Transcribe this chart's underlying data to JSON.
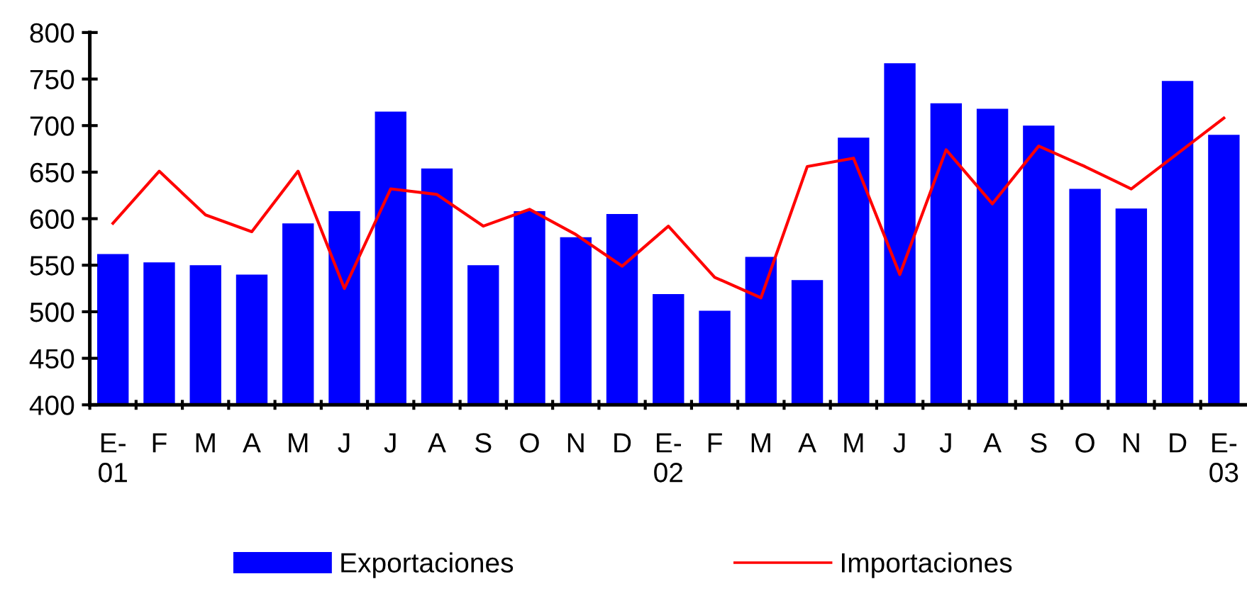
{
  "chart_data": {
    "type": "bar",
    "categories": [
      "E-\n01",
      "F",
      "M",
      "A",
      "M",
      "J",
      "J",
      "A",
      "S",
      "O",
      "N",
      "D",
      "E-\n02",
      "F",
      "M",
      "A",
      "M",
      "J",
      "J",
      "A",
      "S",
      "O",
      "N",
      "D",
      "E-\n03"
    ],
    "series": [
      {
        "name": "Exportaciones",
        "color": "#0000ff",
        "values": [
          562,
          553,
          550,
          540,
          595,
          608,
          715,
          654,
          550,
          608,
          580,
          605,
          519,
          501,
          559,
          534,
          687,
          767,
          724,
          718,
          700,
          632,
          611,
          748,
          690
        ]
      },
      {
        "name": "Importaciones",
        "type": "line",
        "color": "#ff0000",
        "values": [
          595,
          651,
          604,
          586,
          651,
          525,
          632,
          626,
          592,
          610,
          583,
          549,
          592,
          537,
          515,
          656,
          665,
          540,
          674,
          616,
          678,
          656,
          632,
          670,
          708
        ]
      }
    ],
    "ylim": [
      400,
      800
    ],
    "yticks": [
      400,
      450,
      500,
      550,
      600,
      650,
      700,
      750,
      800
    ],
    "grid": false,
    "legend": "bottom"
  }
}
